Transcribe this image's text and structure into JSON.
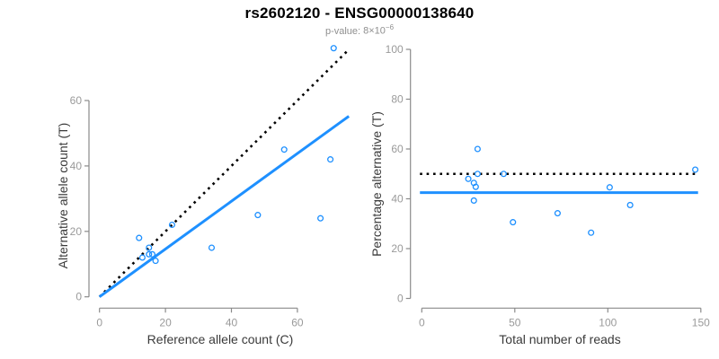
{
  "header": {
    "title": "rs2602120 - ENSG00000138640",
    "pvalue_label": "p-value:",
    "pvalue_mantissa": "8",
    "pvalue_times": "×",
    "pvalue_base": "10",
    "pvalue_exponent": "−6"
  },
  "colors": {
    "accent_blue": "#1E90FF",
    "reference_black": "#000000",
    "axis_gray": "#8a8a8a",
    "tick_label_gray": "#9a9a9a",
    "axis_title_dark": "#3a3a3a",
    "subtitle_gray": "#8f8f8f"
  },
  "chart_data": [
    {
      "type": "scatter",
      "title": "",
      "xlabel": "Reference allele count (C)",
      "ylabel": "Alternative allele count (T)",
      "xticks": [
        0,
        20,
        40,
        60
      ],
      "yticks": [
        0,
        20,
        40,
        60
      ],
      "xlim": [
        0,
        75
      ],
      "ylim": [
        0,
        76
      ],
      "grid": false,
      "points": [
        [
          12,
          18
        ],
        [
          13,
          12
        ],
        [
          15,
          13
        ],
        [
          15,
          15
        ],
        [
          16,
          13
        ],
        [
          17,
          11
        ],
        [
          22,
          22
        ],
        [
          34,
          15
        ],
        [
          48,
          25
        ],
        [
          56,
          45
        ],
        [
          67,
          24
        ],
        [
          70,
          42
        ],
        [
          71,
          76
        ]
      ],
      "lines": [
        {
          "name": "identity-line",
          "style": "dotted",
          "color": "#000000",
          "x1": 0,
          "y1": 0,
          "x2": 75,
          "y2": 75
        },
        {
          "name": "fit-line",
          "style": "solid",
          "color": "#1E90FF",
          "slope": 0.73,
          "x1": 0,
          "y1": 0,
          "x2": 75.6,
          "y2": 55.2
        }
      ]
    },
    {
      "type": "scatter",
      "title": "",
      "xlabel": "Total number of reads",
      "ylabel": "Percentage alternative (T)",
      "xticks": [
        0,
        50,
        100,
        150
      ],
      "yticks": [
        0,
        20,
        40,
        60,
        80,
        100
      ],
      "xlim": [
        0,
        150
      ],
      "ylim": [
        0,
        100
      ],
      "grid": false,
      "points": [
        [
          25,
          48
        ],
        [
          28,
          39.3
        ],
        [
          28,
          46.4
        ],
        [
          29,
          44.8
        ],
        [
          30,
          50
        ],
        [
          30,
          60
        ],
        [
          44,
          50
        ],
        [
          49,
          30.6
        ],
        [
          73,
          34.2
        ],
        [
          91,
          26.4
        ],
        [
          101,
          44.6
        ],
        [
          112,
          37.5
        ],
        [
          147,
          51.7
        ]
      ],
      "lines": [
        {
          "name": "fifty-percent-line",
          "style": "dotted",
          "color": "#000000",
          "x1": -1,
          "y1": 50,
          "x2": 148.5,
          "y2": 50
        },
        {
          "name": "mean-percentage-line",
          "style": "solid",
          "color": "#1E90FF",
          "x1": -1,
          "y1": 42.5,
          "x2": 148.5,
          "y2": 42.5
        }
      ]
    }
  ]
}
